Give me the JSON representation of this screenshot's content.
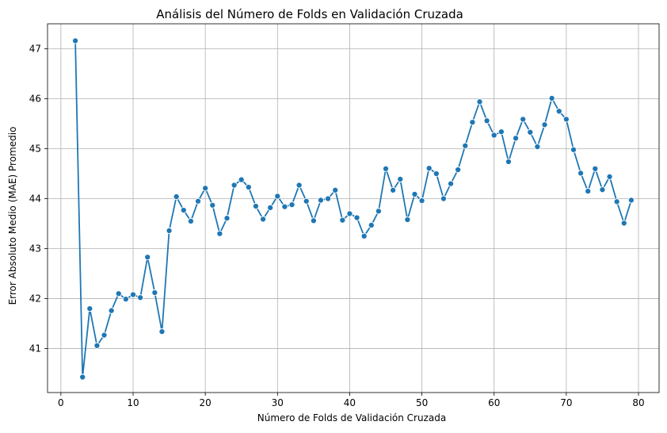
{
  "chart_data": {
    "type": "line",
    "title": "Análisis del Número de Folds en Validación Cruzada",
    "xlabel": "Número de Folds de Validación Cruzada",
    "ylabel": "Error Absoluto Medio (MAE) Promedio",
    "xlim": [
      -1.85,
      82.85
    ],
    "ylim": [
      40.12,
      47.5
    ],
    "xticks": [
      0,
      10,
      20,
      30,
      40,
      50,
      60,
      70,
      80
    ],
    "yticks": [
      41,
      42,
      43,
      44,
      45,
      46,
      47
    ],
    "grid": true,
    "marker": "circle",
    "series": [
      {
        "color": "#1f77b4",
        "x": [
          2,
          3,
          4,
          5,
          6,
          7,
          8,
          9,
          10,
          11,
          12,
          13,
          14,
          15,
          16,
          17,
          18,
          19,
          20,
          21,
          22,
          23,
          24,
          25,
          26,
          27,
          28,
          29,
          30,
          31,
          32,
          33,
          34,
          35,
          36,
          37,
          38,
          39,
          40,
          41,
          42,
          43,
          44,
          45,
          46,
          47,
          48,
          49,
          50,
          51,
          52,
          53,
          54,
          55,
          56,
          57,
          58,
          59,
          60,
          61,
          62,
          63,
          64,
          65,
          66,
          67,
          68,
          69,
          70,
          71,
          72,
          73,
          74,
          75,
          76,
          77,
          78,
          79
        ],
        "values": [
          47.16,
          40.43,
          41.8,
          41.06,
          41.27,
          41.76,
          42.1,
          41.99,
          42.08,
          42.02,
          42.83,
          42.12,
          41.34,
          43.36,
          44.04,
          43.77,
          43.55,
          43.95,
          44.21,
          43.87,
          43.3,
          43.61,
          44.27,
          44.38,
          44.23,
          43.85,
          43.59,
          43.82,
          44.05,
          43.84,
          43.88,
          44.27,
          43.95,
          43.56,
          43.97,
          44.0,
          44.17,
          43.57,
          43.7,
          43.62,
          43.25,
          43.47,
          43.75,
          44.6,
          44.17,
          44.39,
          43.58,
          44.09,
          43.96,
          44.61,
          44.5,
          44.0,
          44.3,
          44.58,
          45.06,
          45.53,
          45.94,
          45.56,
          45.27,
          45.34,
          44.74,
          45.21,
          45.59,
          45.33,
          45.04,
          45.48,
          46.01,
          45.75,
          45.59,
          44.98,
          44.51,
          44.15,
          44.6,
          44.18,
          44.44,
          43.94,
          43.51,
          43.97
        ]
      }
    ]
  }
}
